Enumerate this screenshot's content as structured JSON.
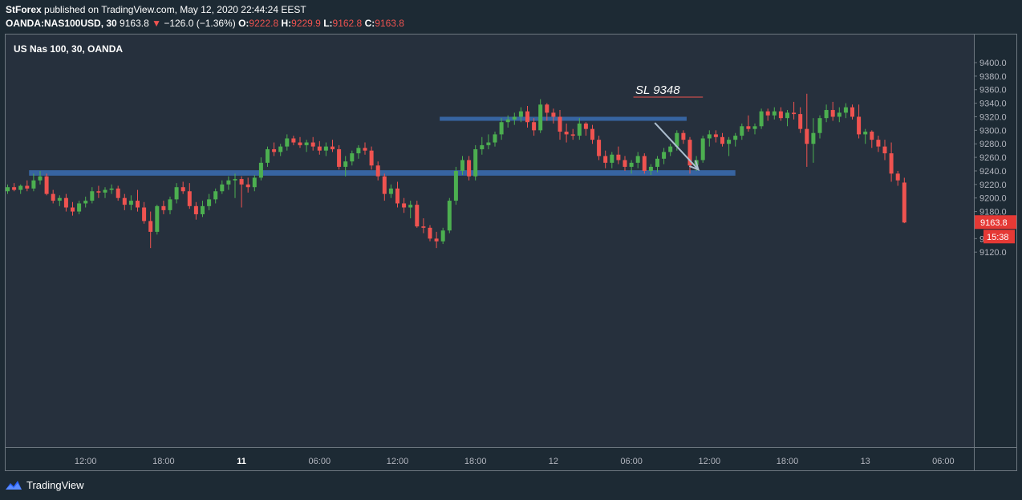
{
  "header": {
    "author": "StForex",
    "published_text": "published on TradingView.com, May 12, 2020 22:44:24 EEST",
    "symbol": "OANDA:NAS100USD, 30",
    "last_price": "9163.8",
    "change_arrow": "▼",
    "change": "−126.0 (−1.36%)",
    "open_label": "O:",
    "open": "9222.8",
    "high_label": "H:",
    "high": "9229.9",
    "low_label": "L:",
    "low": "9162.8",
    "close_label": "C:",
    "close": "9163.8"
  },
  "footer": {
    "brand": "TradingView",
    "logo_icon": "tradingview-logo-icon"
  },
  "colors": {
    "background": "#1d2a34",
    "pane": "#26303d",
    "bull": "#4caf50",
    "bear": "#ef5350",
    "zone": "#3b6db3",
    "axis_text": "#b2b5be",
    "price_tag": "#e53935"
  },
  "chart_data": {
    "type": "candlestick",
    "title": "US Nas 100, 30, OANDA",
    "ylim": [
      9110,
      9420
    ],
    "yticks": [
      9120,
      9140,
      9160,
      9180,
      9200,
      9220,
      9240,
      9260,
      9280,
      9300,
      9320,
      9340,
      9360,
      9380,
      9400
    ],
    "x_tick_labels": [
      {
        "label": "12:00",
        "bar": 12
      },
      {
        "label": "18:00",
        "bar": 24
      },
      {
        "label": "11",
        "bar": 36,
        "bold": true
      },
      {
        "label": "06:00",
        "bar": 48
      },
      {
        "label": "12:00",
        "bar": 60
      },
      {
        "label": "18:00",
        "bar": 72
      },
      {
        "label": "12",
        "bar": 84
      },
      {
        "label": "06:00",
        "bar": 96
      },
      {
        "label": "12:00",
        "bar": 108
      },
      {
        "label": "18:00",
        "bar": 120
      },
      {
        "label": "13",
        "bar": 132
      },
      {
        "label": "06:00",
        "bar": 144
      }
    ],
    "candles": [
      [
        9210,
        9220,
        9206,
        9216
      ],
      [
        9216,
        9222,
        9210,
        9212
      ],
      [
        9212,
        9220,
        9206,
        9218
      ],
      [
        9218,
        9226,
        9210,
        9214
      ],
      [
        9214,
        9236,
        9210,
        9226
      ],
      [
        9226,
        9240,
        9220,
        9232
      ],
      [
        9232,
        9236,
        9204,
        9206
      ],
      [
        9206,
        9212,
        9192,
        9196
      ],
      [
        9196,
        9204,
        9188,
        9200
      ],
      [
        9200,
        9206,
        9180,
        9186
      ],
      [
        9186,
        9194,
        9174,
        9180
      ],
      [
        9180,
        9196,
        9176,
        9192
      ],
      [
        9192,
        9202,
        9186,
        9196
      ],
      [
        9196,
        9216,
        9192,
        9210
      ],
      [
        9210,
        9218,
        9200,
        9208
      ],
      [
        9208,
        9216,
        9200,
        9212
      ],
      [
        9212,
        9220,
        9206,
        9214
      ],
      [
        9214,
        9218,
        9196,
        9200
      ],
      [
        9200,
        9206,
        9182,
        9190
      ],
      [
        9190,
        9204,
        9182,
        9196
      ],
      [
        9196,
        9212,
        9180,
        9186
      ],
      [
        9186,
        9194,
        9162,
        9166
      ],
      [
        9166,
        9180,
        9126,
        9150
      ],
      [
        9150,
        9190,
        9146,
        9188
      ],
      [
        9188,
        9196,
        9176,
        9182
      ],
      [
        9182,
        9202,
        9176,
        9198
      ],
      [
        9198,
        9222,
        9192,
        9216
      ],
      [
        9216,
        9224,
        9206,
        9210
      ],
      [
        9210,
        9222,
        9184,
        9188
      ],
      [
        9188,
        9194,
        9168,
        9176
      ],
      [
        9176,
        9196,
        9172,
        9188
      ],
      [
        9188,
        9206,
        9182,
        9198
      ],
      [
        9198,
        9214,
        9192,
        9210
      ],
      [
        9210,
        9226,
        9206,
        9220
      ],
      [
        9220,
        9232,
        9212,
        9226
      ],
      [
        9226,
        9236,
        9200,
        9228
      ],
      [
        9228,
        9232,
        9186,
        9220
      ],
      [
        9220,
        9230,
        9208,
        9216
      ],
      [
        9216,
        9234,
        9210,
        9230
      ],
      [
        9230,
        9260,
        9226,
        9252
      ],
      [
        9252,
        9276,
        9246,
        9272
      ],
      [
        9272,
        9282,
        9262,
        9268
      ],
      [
        9268,
        9280,
        9262,
        9276
      ],
      [
        9276,
        9294,
        9270,
        9288
      ],
      [
        9288,
        9292,
        9278,
        9282
      ],
      [
        9282,
        9290,
        9274,
        9278
      ],
      [
        9278,
        9286,
        9268,
        9282
      ],
      [
        9282,
        9290,
        9270,
        9276
      ],
      [
        9276,
        9284,
        9264,
        9270
      ],
      [
        9270,
        9282,
        9262,
        9276
      ],
      [
        9276,
        9286,
        9268,
        9272
      ],
      [
        9272,
        9278,
        9242,
        9246
      ],
      [
        9246,
        9262,
        9232,
        9254
      ],
      [
        9254,
        9270,
        9248,
        9266
      ],
      [
        9266,
        9278,
        9258,
        9274
      ],
      [
        9274,
        9282,
        9264,
        9270
      ],
      [
        9270,
        9276,
        9242,
        9248
      ],
      [
        9248,
        9254,
        9226,
        9232
      ],
      [
        9232,
        9236,
        9196,
        9206
      ],
      [
        9206,
        9220,
        9200,
        9214
      ],
      [
        9214,
        9224,
        9186,
        9192
      ],
      [
        9192,
        9200,
        9178,
        9186
      ],
      [
        9186,
        9196,
        9170,
        9190
      ],
      [
        9190,
        9196,
        9156,
        9158
      ],
      [
        9158,
        9170,
        9148,
        9156
      ],
      [
        9156,
        9160,
        9136,
        9140
      ],
      [
        9140,
        9150,
        9126,
        9136
      ],
      [
        9136,
        9156,
        9132,
        9152
      ],
      [
        9152,
        9200,
        9148,
        9196
      ],
      [
        9196,
        9246,
        9190,
        9240
      ],
      [
        9240,
        9262,
        9234,
        9256
      ],
      [
        9256,
        9262,
        9226,
        9232
      ],
      [
        9232,
        9278,
        9226,
        9272
      ],
      [
        9272,
        9290,
        9264,
        9278
      ],
      [
        9278,
        9294,
        9272,
        9282
      ],
      [
        9282,
        9298,
        9276,
        9294
      ],
      [
        9294,
        9318,
        9286,
        9312
      ],
      [
        9312,
        9322,
        9304,
        9316
      ],
      [
        9316,
        9326,
        9308,
        9320
      ],
      [
        9320,
        9334,
        9312,
        9328
      ],
      [
        9328,
        9336,
        9304,
        9312
      ],
      [
        9312,
        9318,
        9292,
        9300
      ],
      [
        9300,
        9346,
        9296,
        9338
      ],
      [
        9338,
        9340,
        9314,
        9326
      ],
      [
        9326,
        9332,
        9310,
        9320
      ],
      [
        9320,
        9330,
        9286,
        9298
      ],
      [
        9298,
        9310,
        9282,
        9294
      ],
      [
        9294,
        9302,
        9286,
        9292
      ],
      [
        9292,
        9318,
        9286,
        9310
      ],
      [
        9310,
        9312,
        9292,
        9302
      ],
      [
        9302,
        9308,
        9280,
        9286
      ],
      [
        9286,
        9292,
        9256,
        9262
      ],
      [
        9262,
        9270,
        9244,
        9252
      ],
      [
        9252,
        9268,
        9244,
        9264
      ],
      [
        9264,
        9276,
        9250,
        9256
      ],
      [
        9256,
        9262,
        9240,
        9246
      ],
      [
        9246,
        9256,
        9236,
        9252
      ],
      [
        9252,
        9268,
        9244,
        9262
      ],
      [
        9262,
        9266,
        9236,
        9240
      ],
      [
        9240,
        9250,
        9234,
        9246
      ],
      [
        9246,
        9262,
        9238,
        9258
      ],
      [
        9258,
        9274,
        9250,
        9268
      ],
      [
        9268,
        9280,
        9262,
        9276
      ],
      [
        9276,
        9300,
        9270,
        9296
      ],
      [
        9296,
        9300,
        9280,
        9286
      ],
      [
        9286,
        9290,
        9236,
        9248
      ],
      [
        9248,
        9262,
        9240,
        9256
      ],
      [
        9256,
        9292,
        9252,
        9288
      ],
      [
        9288,
        9300,
        9276,
        9294
      ],
      [
        9294,
        9300,
        9282,
        9290
      ],
      [
        9290,
        9296,
        9276,
        9280
      ],
      [
        9280,
        9290,
        9262,
        9286
      ],
      [
        9286,
        9296,
        9276,
        9292
      ],
      [
        9292,
        9310,
        9286,
        9306
      ],
      [
        9306,
        9322,
        9298,
        9302
      ],
      [
        9302,
        9310,
        9294,
        9306
      ],
      [
        9306,
        9332,
        9302,
        9328
      ],
      [
        9328,
        9332,
        9314,
        9322
      ],
      [
        9322,
        9334,
        9316,
        9328
      ],
      [
        9328,
        9334,
        9314,
        9318
      ],
      [
        9318,
        9330,
        9306,
        9326
      ],
      [
        9326,
        9342,
        9316,
        9324
      ],
      [
        9324,
        9334,
        9296,
        9302
      ],
      [
        9302,
        9354,
        9246,
        9280
      ],
      [
        9280,
        9318,
        9252,
        9296
      ],
      [
        9296,
        9322,
        9288,
        9318
      ],
      [
        9318,
        9338,
        9312,
        9330
      ],
      [
        9330,
        9342,
        9314,
        9320
      ],
      [
        9320,
        9334,
        9312,
        9326
      ],
      [
        9326,
        9340,
        9318,
        9334
      ],
      [
        9334,
        9338,
        9316,
        9320
      ],
      [
        9320,
        9338,
        9288,
        9294
      ],
      [
        9294,
        9302,
        9280,
        9298
      ],
      [
        9298,
        9300,
        9274,
        9286
      ],
      [
        9286,
        9292,
        9268,
        9276
      ],
      [
        9276,
        9286,
        9256,
        9266
      ],
      [
        9266,
        9282,
        9224,
        9236
      ],
      [
        9236,
        9240,
        9218,
        9226
      ],
      [
        9222.8,
        9229.9,
        9162.8,
        9163.8
      ]
    ],
    "zones": [
      {
        "from_bar": 3.3,
        "to_bar": 112,
        "low": 9233,
        "high": 9241
      },
      {
        "from_bar": 66.5,
        "to_bar": 104.5,
        "low": 9314,
        "high": 9320
      }
    ],
    "annotations": [
      {
        "type": "text",
        "text": "SL 9348",
        "bar": 96.6,
        "price": 9354
      },
      {
        "type": "hline",
        "from_bar": 96.3,
        "to_bar": 107,
        "price": 9349
      },
      {
        "type": "arrow",
        "from_bar": 99.6,
        "from_price": 9311,
        "to_bar": 106.3,
        "to_price": 9242
      }
    ],
    "last_price_label": "9163.8",
    "countdown_label": "15:38"
  }
}
